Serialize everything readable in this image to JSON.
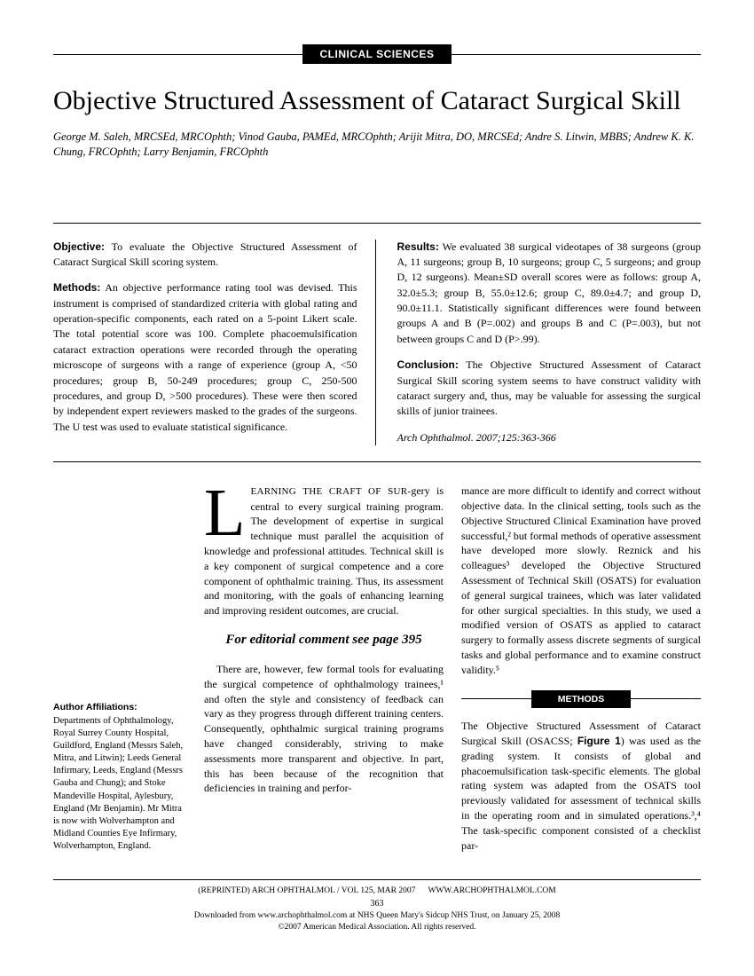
{
  "section_label": "CLINICAL SCIENCES",
  "title": "Objective Structured Assessment of Cataract Surgical Skill",
  "authors": "George M. Saleh, MRCSEd, MRCOphth; Vinod Gauba, PAMEd, MRCOphth; Arijit Mitra, DO, MRCSEd; Andre S. Litwin, MBBS; Andrew K. K. Chung, FRCOphth; Larry Benjamin, FRCOphth",
  "abstract": {
    "objective_label": "Objective:",
    "objective_text": " To evaluate the Objective Structured Assessment of Cataract Surgical Skill scoring system.",
    "methods_label": "Methods:",
    "methods_text": " An objective performance rating tool was devised. This instrument is comprised of standardized criteria with global rating and operation-specific components, each rated on a 5-point Likert scale. The total potential score was 100. Complete phacoemulsification cataract extraction operations were recorded through the operating microscope of surgeons with a range of experience (group A, <50 procedures; group B, 50-249 procedures; group C, 250-500 procedures, and group D, >500 procedures). These were then scored by independent expert reviewers masked to the grades of the surgeons. The U test was used to evaluate statistical significance.",
    "results_label": "Results:",
    "results_text": " We evaluated 38 surgical videotapes of 38 surgeons (group A, 11 surgeons; group B, 10 surgeons; group C, 5 surgeons; and group D, 12 surgeons). Mean±SD overall scores were as follows: group A, 32.0±5.3; group B, 55.0±12.6; group C, 89.0±4.7; and group D, 90.0±11.1. Statistically significant differences were found between groups A and B (P=.002) and groups B and C (P=.003), but not between groups C and D (P>.99).",
    "conclusion_label": "Conclusion:",
    "conclusion_text": " The Objective Structured Assessment of Cataract Surgical Skill scoring system seems to have construct validity with cataract surgery and, thus, may be valuable for assessing the surgical skills of junior trainees.",
    "citation": "Arch Ophthalmol. 2007;125:363-366"
  },
  "affiliations_label": "Author Affiliations:",
  "affiliations_text": "Departments of Ophthalmology, Royal Surrey County Hospital, Guildford, England (Messrs Saleh, Mitra, and Litwin); Leeds General Infirmary, Leeds, England (Messrs Gauba and Chung); and Stoke Mandeville Hospital, Aylesbury, England (Mr Benjamin). Mr Mitra is now with Wolverhampton and Midland Counties Eye Infirmary, Wolverhampton, England.",
  "body": {
    "dropcap": "L",
    "first_caps": "EARNING THE CRAFT OF SUR-",
    "para1": "gery is central to every surgical training program. The development of expertise in surgical technique must parallel the acquisition of knowledge and professional attitudes. Technical skill is a key component of surgical competence and a core component of ophthalmic training. Thus, its assessment and monitoring, with the goals of enhancing learning and improving resident outcomes, are crucial.",
    "editorial": "For editorial comment see page 395",
    "para2": "There are, however, few formal tools for evaluating the surgical competence of ophthalmology trainees,¹ and often the style and consistency of feedback can vary as they progress through different training centers. Consequently, ophthalmic surgical training programs have changed considerably, striving to make assessments more transparent and objective. In part, this has been because of the recognition that deficiencies in training and perfor-",
    "para3": "mance are more difficult to identify and correct without objective data. In the clinical setting, tools such as the Objective Structured Clinical Examination have proved successful,² but formal methods of operative assessment have developed more slowly. Reznick and his colleagues³ developed the Objective Structured Assessment of Technical Skill (OSATS) for evaluation of general surgical trainees, which was later validated for other surgical specialties. In this study, we used a modified version of OSATS as applied to cataract surgery to formally assess discrete segments of surgical tasks and global performance and to examine construct validity.⁵"
  },
  "methods_label": "METHODS",
  "methods_body": "The Objective Structured Assessment of Cataract Surgical Skill (OSACSS; Figure 1) was used as the grading system. It consists of global and phacoemulsification task-specific elements. The global rating system was adapted from the OSATS tool previously validated for assessment of technical skills in the operating room and in simulated operations.³,⁴ The task-specific component consisted of a checklist par-",
  "figure_ref": "Figure 1",
  "footer": {
    "reprint": "(REPRINTED) ARCH OPHTHALMOL / VOL 125, MAR 2007",
    "url": "WWW.ARCHOPHTHALMOL.COM",
    "page": "363",
    "downloaded": "Downloaded from www.archophthalmol.com at NHS Queen Mary's Sidcup NHS Trust, on January 25, 2008",
    "copyright": "©2007 American Medical Association. All rights reserved."
  }
}
